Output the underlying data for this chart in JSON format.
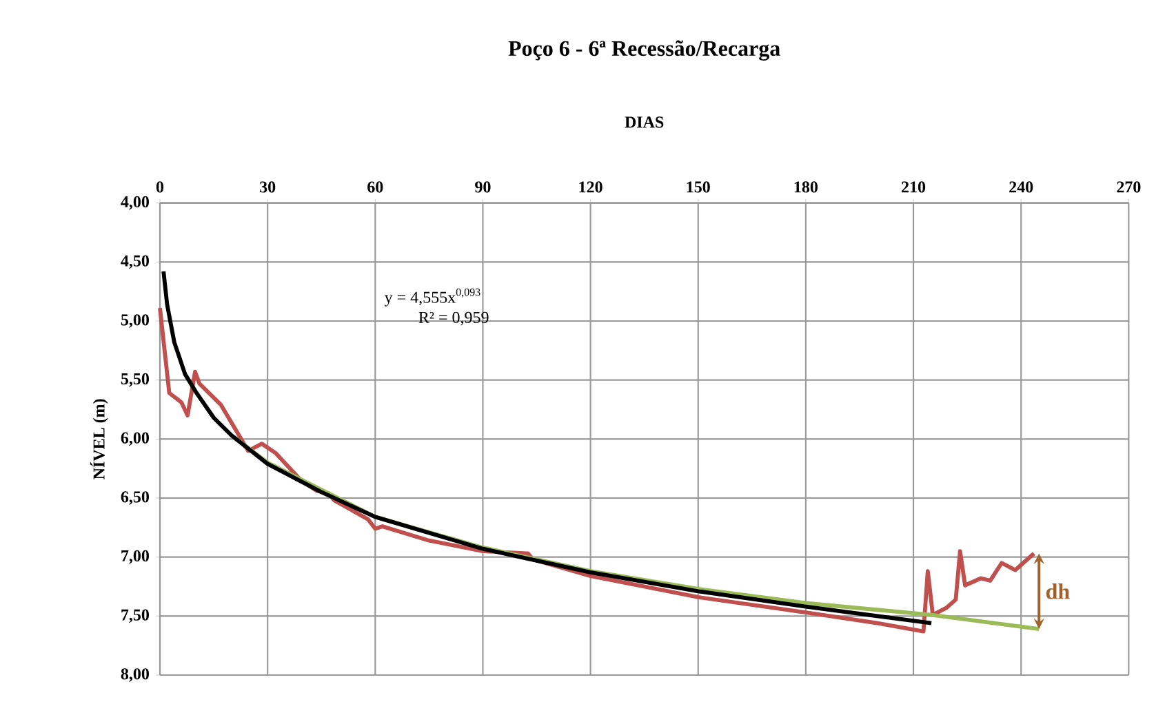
{
  "chart_data": {
    "type": "line",
    "title": "Poço 6 - 6ª Recessão/Recarga",
    "xlabel": "DIAS",
    "ylabel": "NÍVEL (m)",
    "xlim": [
      0,
      270
    ],
    "xticks": [
      0,
      30,
      60,
      90,
      120,
      150,
      180,
      210,
      240,
      270
    ],
    "ylim": [
      8,
      4
    ],
    "yticks": [
      {
        "value": 4,
        "label": "4,00"
      },
      {
        "value": 4.5,
        "label": "4,50"
      },
      {
        "value": 5,
        "label": "5,00"
      },
      {
        "value": 5.5,
        "label": "5,50"
      },
      {
        "value": 6,
        "label": "6,00"
      },
      {
        "value": 6.5,
        "label": "6,50"
      },
      {
        "value": 7,
        "label": "7,00"
      },
      {
        "value": 7.5,
        "label": "7,50"
      },
      {
        "value": 8,
        "label": "8,00"
      }
    ],
    "grid": true,
    "marker": "none",
    "line_style": "solid",
    "series": [
      {
        "color": "#c0504d",
        "x": [
          0,
          2.6,
          6,
          7.7,
          9.8,
          11,
          17,
          24.6,
          28.4,
          32.3,
          39.3,
          43.8,
          47,
          48.6,
          58,
          60,
          62,
          75,
          90,
          102.6,
          104,
          120,
          150,
          180,
          200,
          212.8,
          214,
          215.4,
          219.2,
          221.8,
          223,
          224.4,
          228.8,
          231.4,
          234.6,
          238.4,
          243.6
        ],
        "values": [
          4.89,
          5.61,
          5.69,
          5.8,
          5.43,
          5.53,
          5.71,
          6.1,
          6.04,
          6.12,
          6.35,
          6.44,
          6.46,
          6.52,
          6.68,
          6.76,
          6.74,
          6.86,
          6.95,
          6.97,
          7.02,
          7.16,
          7.34,
          7.47,
          7.56,
          7.63,
          7.12,
          7.49,
          7.43,
          7.36,
          6.95,
          7.24,
          7.18,
          7.2,
          7.05,
          7.11,
          6.97
        ]
      },
      {
        "color": "#9bbb59",
        "x": [
          20,
          30,
          60,
          90,
          120,
          150,
          180,
          215,
          245
        ],
        "values": [
          5.97,
          6.2,
          6.66,
          6.92,
          7.12,
          7.27,
          7.39,
          7.49,
          7.61
        ]
      },
      {
        "color": "#000000",
        "x": [
          1,
          2,
          4,
          7,
          10,
          15,
          20,
          30,
          45,
          60,
          90,
          120,
          150,
          180,
          215
        ],
        "values": [
          4.58,
          4.86,
          5.18,
          5.45,
          5.6,
          5.82,
          5.97,
          6.21,
          6.45,
          6.66,
          6.93,
          7.13,
          7.29,
          7.42,
          7.56
        ]
      }
    ],
    "annotations": [
      "y = 4,555x$^{0,093}$",
      "R² = 0,959",
      "dh"
    ]
  }
}
